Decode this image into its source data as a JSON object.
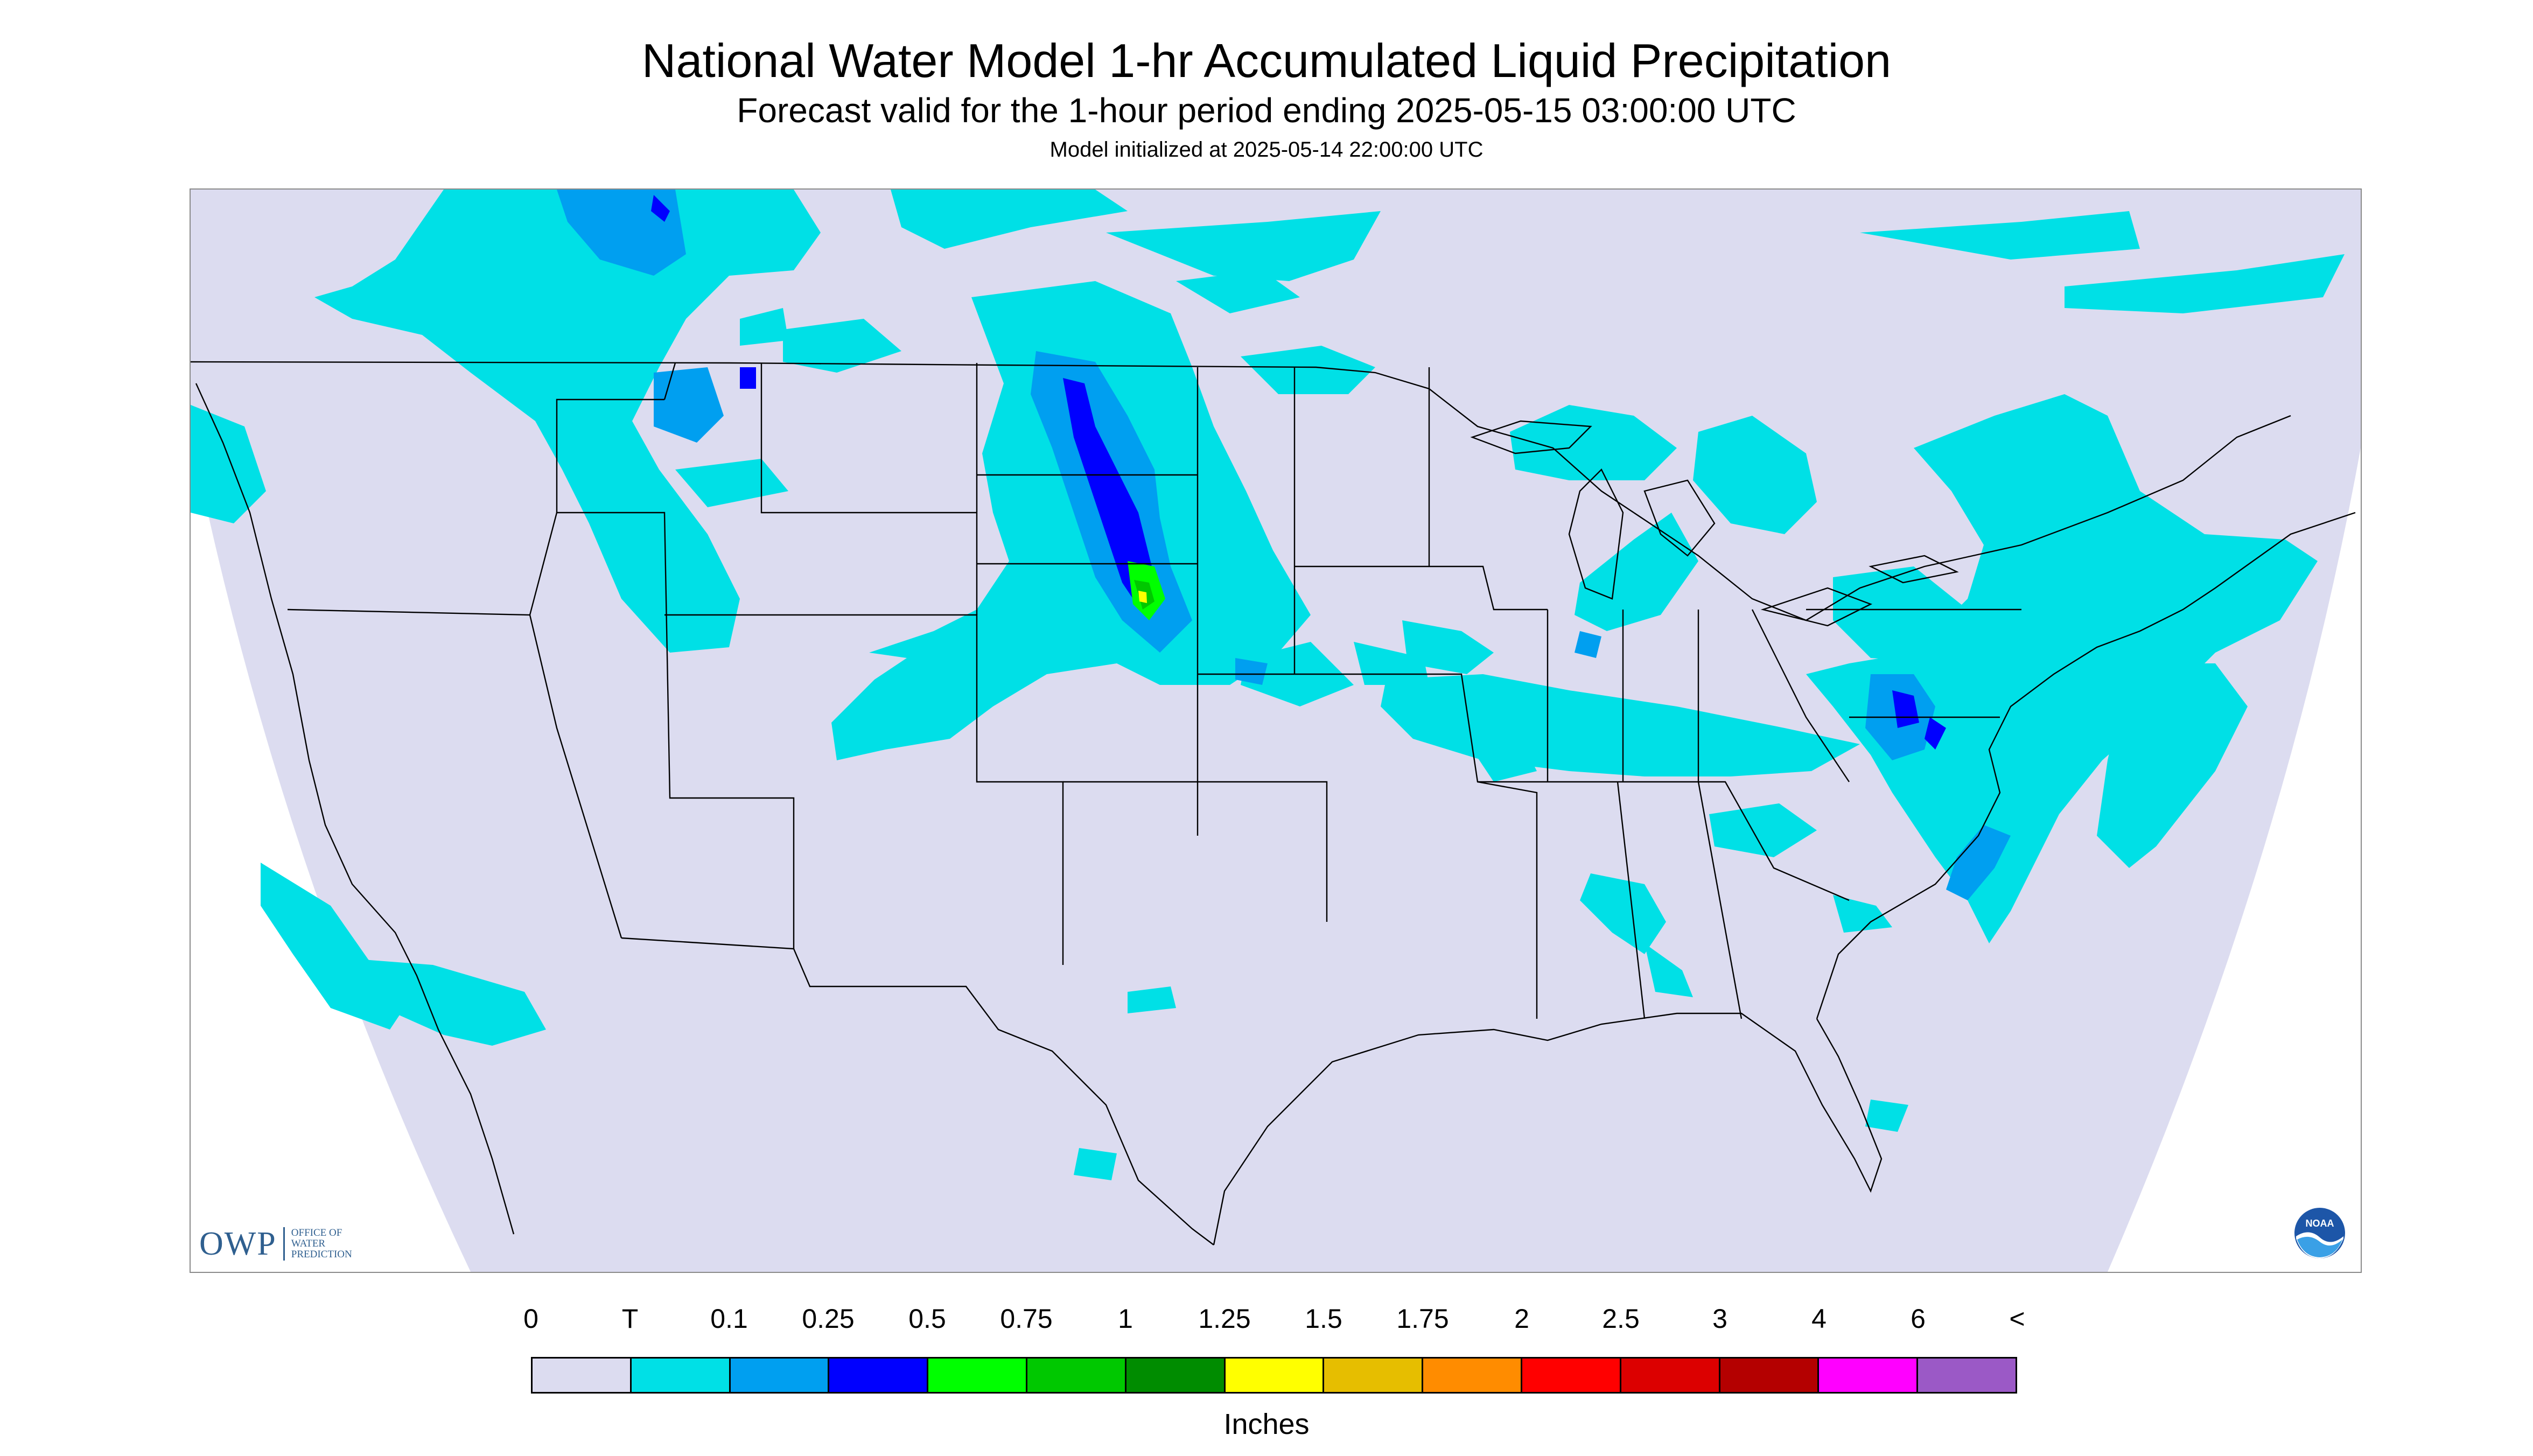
{
  "header": {
    "title": "National Water Model 1-hr Accumulated Liquid Precipitation",
    "subtitle": "Forecast valid for the 1-hour period ending 2025-05-15 03:00:00 UTC",
    "init_line": "Model initialized at 2025-05-14 22:00:00 UTC"
  },
  "map": {
    "region": "Continental United States",
    "projection_outside_color": "#ffffff",
    "domain_fill": "#dcdcf0",
    "boundary_color": "#000000",
    "precip_features": [
      {
        "area": "Western South Dakota / Nebraska Panhandle",
        "max_class": "1.25"
      },
      {
        "area": "Eastern North Dakota / South Dakota band",
        "max_class": "0.5"
      },
      {
        "area": "Montana / Idaho / Wyoming",
        "max_class": "0.25"
      },
      {
        "area": "Maryland / Delaware / Mid-Atlantic",
        "max_class": "0.5"
      },
      {
        "area": "Great Lakes / Michigan",
        "max_class": "0.25"
      },
      {
        "area": "Southern California / Baja coast",
        "max_class": "T"
      },
      {
        "area": "Southern Quebec / Ontario",
        "max_class": "0.1"
      }
    ]
  },
  "logos": {
    "owp_letters": "OWP",
    "owp_words": [
      "Office of",
      "Water",
      "Prediction"
    ],
    "noaa_text": "NOAA"
  },
  "legend": {
    "labels": [
      "0",
      "T",
      "0.1",
      "0.25",
      "0.5",
      "0.75",
      "1",
      "1.25",
      "1.5",
      "1.75",
      "2",
      "2.5",
      "3",
      "4",
      "6",
      "<"
    ],
    "colors": [
      "#dcdcf0",
      "#00e0e6",
      "#009ff0",
      "#0000ff",
      "#00ff00",
      "#00c800",
      "#008c00",
      "#ffff00",
      "#e6be00",
      "#ff8c00",
      "#ff0000",
      "#dc0000",
      "#b40000",
      "#ff00ff",
      "#9b59c6"
    ],
    "units": "Inches"
  }
}
